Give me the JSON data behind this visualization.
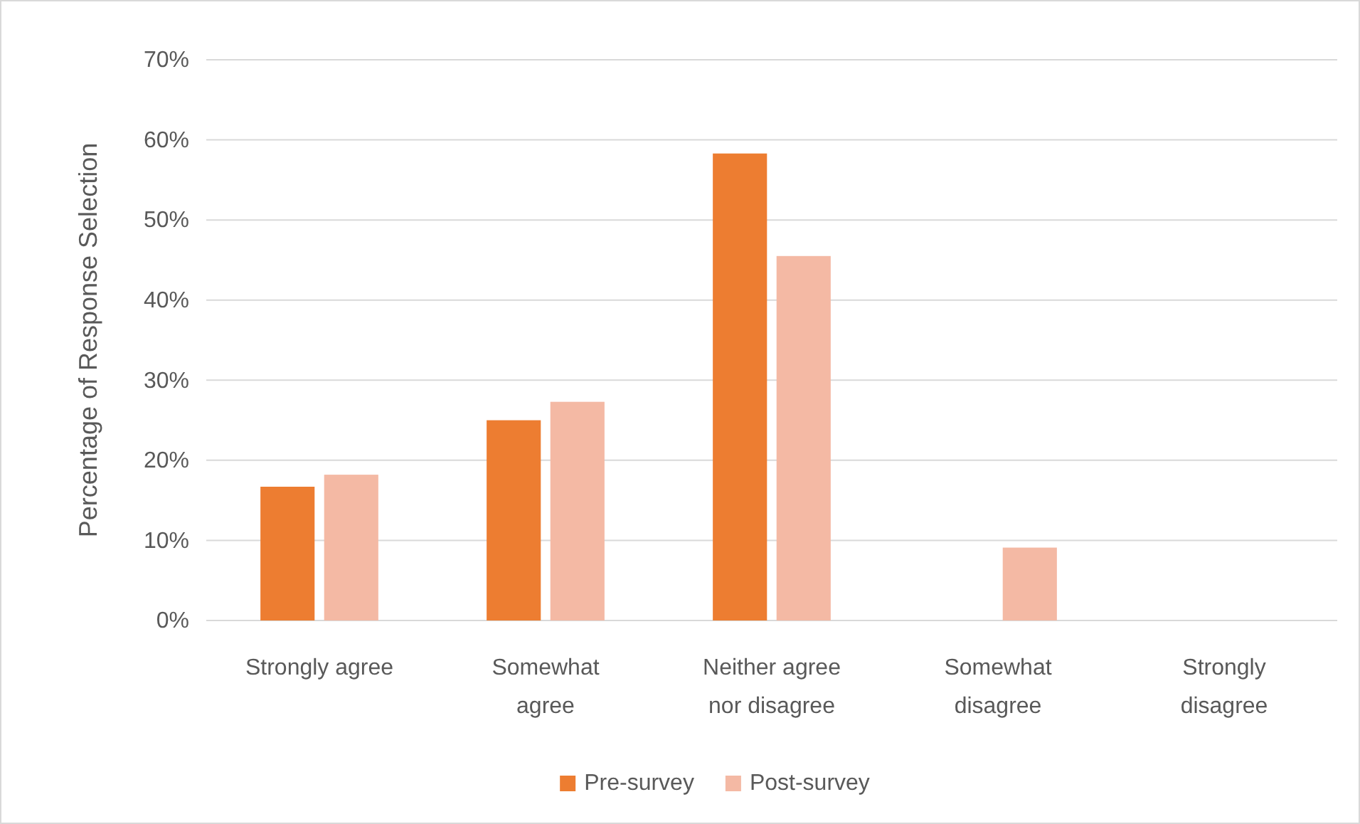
{
  "chart_data": {
    "type": "bar",
    "ylabel": "Percentage of Response Selection",
    "categories": [
      "Strongly agree",
      "Somewhat agree",
      "Neither agree nor disagree",
      "Somewhat disagree",
      "Strongly disagree"
    ],
    "series": [
      {
        "name": "Pre-survey",
        "color": "#ed7d31",
        "values": [
          16.7,
          25,
          58.3,
          0,
          0
        ]
      },
      {
        "name": "Post-survey",
        "color": "#f4b9a4",
        "values": [
          18.2,
          27.3,
          45.5,
          9.1,
          0
        ]
      }
    ],
    "ylim": [
      0,
      70
    ],
    "yticks": [
      {
        "value": 0,
        "label": "0%"
      },
      {
        "value": 10,
        "label": "10%"
      },
      {
        "value": 20,
        "label": "20%"
      },
      {
        "value": 30,
        "label": "30%"
      },
      {
        "value": 40,
        "label": "40%"
      },
      {
        "value": 50,
        "label": "50%"
      },
      {
        "value": 60,
        "label": "60%"
      },
      {
        "value": 70,
        "label": "70%"
      }
    ],
    "grid": "y",
    "legend": "bottom"
  }
}
